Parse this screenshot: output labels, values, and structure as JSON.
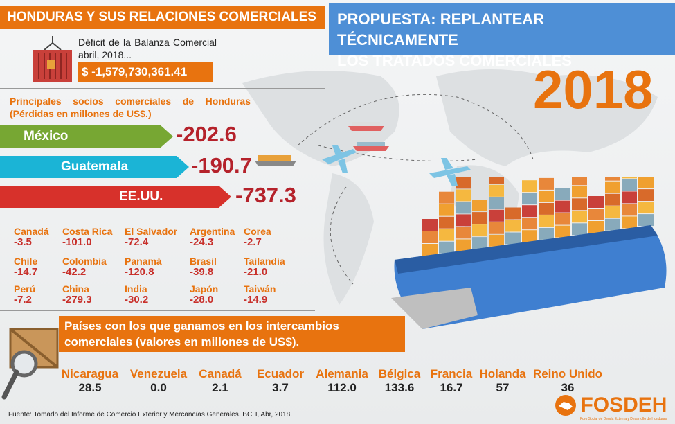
{
  "header": {
    "left_title": "HONDURAS Y SUS RELACIONES COMERCIALES",
    "proposal_line1": "PROPUESTA: REPLANTEAR TÉCNICAMENTE",
    "proposal_line2": "LOS  TRATADOS COMERCIALES"
  },
  "year": "2018",
  "deficit": {
    "label": "Déficit de la Balanza Comercial abril, 2018...",
    "amount": "$ -1,579,730,361.41"
  },
  "partners": {
    "heading": "Principales socios comerciales de Honduras (Pérdidas en millones de US$.)",
    "main": [
      {
        "name": "México",
        "value": "-202.6",
        "color": "#77a733"
      },
      {
        "name": "Guatemala",
        "value": "-190.7",
        "color": "#1bb4d6"
      },
      {
        "name": "EE.UU.",
        "value": "-737.3",
        "color": "#d7312b"
      }
    ],
    "others": [
      {
        "name": "Canadá",
        "value": "-3.5"
      },
      {
        "name": "Costa Rica",
        "value": "-101.0"
      },
      {
        "name": "El Salvador",
        "value": "-72.4"
      },
      {
        "name": "Argentina",
        "value": "-24.3"
      },
      {
        "name": "Corea",
        "value": "-2.7"
      },
      {
        "name": "Chile",
        "value": "-14.7"
      },
      {
        "name": "Colombia",
        "value": "-42.2"
      },
      {
        "name": "Panamá",
        "value": "-120.8"
      },
      {
        "name": "Brasil",
        "value": "-39.8"
      },
      {
        "name": "Tailandia",
        "value": "-21.0"
      },
      {
        "name": "Perú",
        "value": "-7.2"
      },
      {
        "name": "China",
        "value": "-279.3"
      },
      {
        "name": "India",
        "value": "-30.2"
      },
      {
        "name": "Japón",
        "value": "-28.0"
      },
      {
        "name": "Taiwán",
        "value": "-14.9"
      }
    ]
  },
  "gains": {
    "heading": "Países con los que ganamos en los intercambios comerciales (valores en millones de US$).",
    "countries": [
      {
        "name": "Nicaragua",
        "value": "28.5"
      },
      {
        "name": "Venezuela",
        "value": "0.0"
      },
      {
        "name": "Canadá",
        "value": "2.1"
      },
      {
        "name": "Ecuador",
        "value": "3.7"
      },
      {
        "name": "Alemania",
        "value": "112.0"
      },
      {
        "name": "Bélgica",
        "value": "133.6"
      },
      {
        "name": "Francia",
        "value": "16.7"
      },
      {
        "name": "Holanda",
        "value": "57"
      },
      {
        "name": "Reino Unido",
        "value": "36"
      }
    ]
  },
  "footer": "Fuente: Tomado del Informe de Comercio Exterior y Mercancías Generales. BCH, Abr, 2018.",
  "logo": {
    "name": "FOSDEH",
    "tagline": "Foro Social de Deuda Externa y Desarrollo de Honduras"
  },
  "colors": {
    "orange": "#e8730f",
    "blue": "#4e8fd6",
    "red": "#b5222b"
  }
}
